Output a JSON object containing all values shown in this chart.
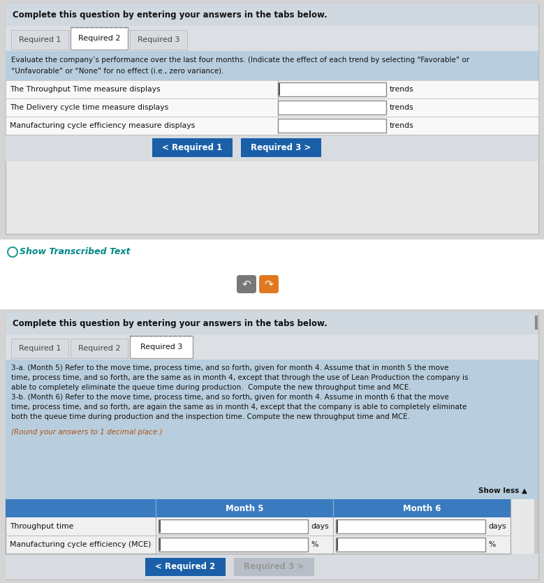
{
  "bg_color": "#d4d4d4",
  "panel_bg": "#f0f0f0",
  "header_bg": "#d0d8e0",
  "blue_info_bg": "#b8cede",
  "blue_btn_color": "#1a5fa8",
  "gray_btn_color": "#b8bec8",
  "table_bg": "#ffffff",
  "tab_active_bg": "#ffffff",
  "tab_inactive_bg": "#d8dce0",
  "instruction_text": "Complete this question by entering your answers in the tabs below.",
  "tabs_panel1": [
    "Required 1",
    "Required 2",
    "Required 3"
  ],
  "active_tab_panel1": 1,
  "eval_text_line1": "Evaluate the company’s performance over the last four months. (Indicate the effect of each trend by selecting “Favorable” or",
  "eval_text_line2": "“Unfavorable” or “None” for no effect (i.e., zero variance).",
  "table1_rows": [
    "The Throughput Time measure displays",
    "The Delivery cycle time measure displays",
    "Manufacturing cycle efficiency measure displays"
  ],
  "table1_suffix": "trends",
  "btn1_left": "< Required 1",
  "btn1_right": "Required 3 >",
  "show_transcribed": "Show Transcribed Text",
  "panel2_instruction": "Complete this question by entering your answers in the tabs below.",
  "tabs_panel2": [
    "Required 1",
    "Required 2",
    "Required 3"
  ],
  "active_tab_panel2": 2,
  "body_lines": [
    "3-a. (Month 5) Refer to the move time, process time, and so forth, given for month 4. Assume that in month 5 the move",
    "time, process time, and so forth, are the same as in month 4, except that through the use of Lean Production the company is",
    "able to completely eliminate the queue time during production.  Compute the new throughput time and MCE.",
    "3-b. (Month 6) Refer to the move time, process time, and so forth, given for month 4. Assume in month 6 that the move",
    "time, process time, and so forth, are again the same as in month 4, except that the company is able to completely eliminate",
    "both the queue time during production and the inspection time. Compute the new throughput time and MCE."
  ],
  "round_note": "(Round your answers to 1 decimal place.)",
  "show_less": "Show less ▲",
  "table2_header": [
    "",
    "Month 5",
    "Month 6"
  ],
  "table2_rows": [
    "Throughput time",
    "Manufacturing cycle efficiency (MCE)"
  ],
  "table2_suffixes": [
    "days",
    "%"
  ],
  "btn2_left": "< Required 2",
  "btn2_right": "Required 3 >"
}
